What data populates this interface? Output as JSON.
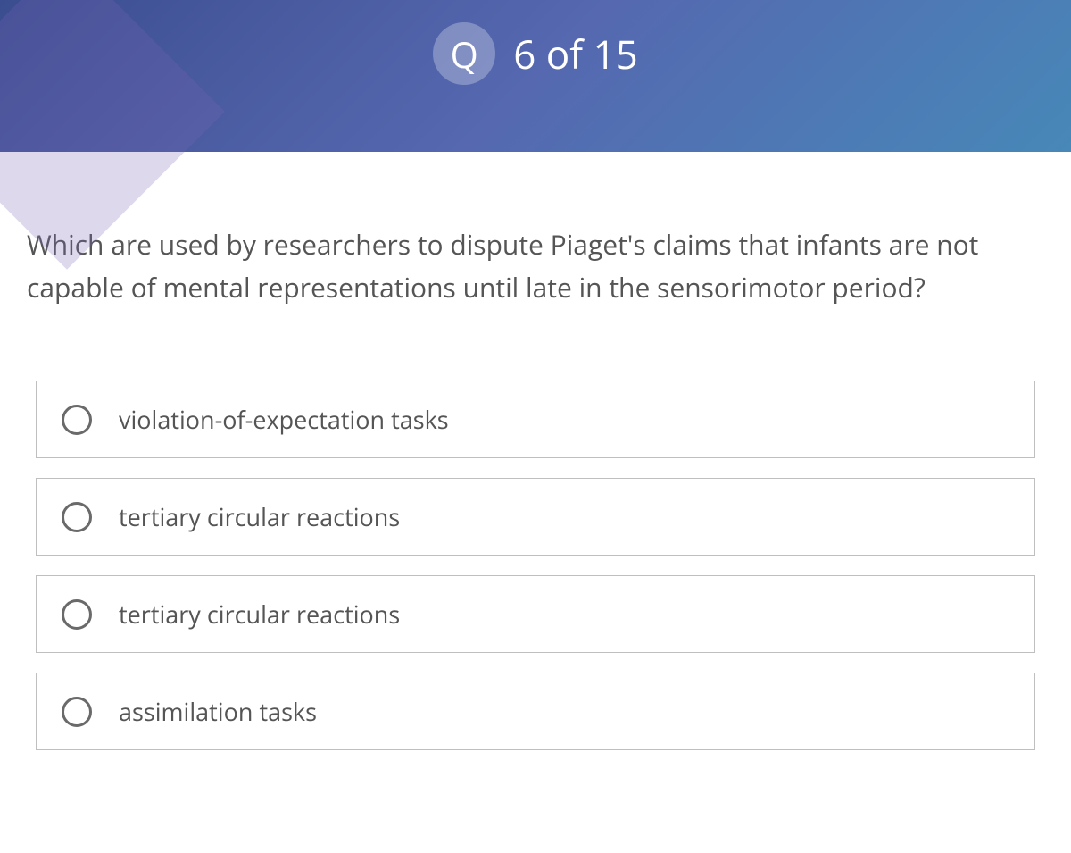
{
  "header": {
    "badge_letter": "Q",
    "progress_text": "6 of 15",
    "background_gradient_start": "#3a4d8f",
    "background_gradient_end": "#4788b8",
    "text_color": "#ffffff",
    "badge_bg": "rgba(255,255,255,0.28)"
  },
  "question": {
    "text": "Which are used by researchers to dispute Piaget's claims that infants are not capable of mental representations until late in the sensorimotor period?",
    "text_color": "#555555",
    "font_size": 30
  },
  "options": [
    {
      "label": "violation-of-expectation tasks",
      "selected": false
    },
    {
      "label": "tertiary circular reactions",
      "selected": false
    },
    {
      "label": "tertiary circular reactions",
      "selected": false
    },
    {
      "label": "assimilation tasks",
      "selected": false
    }
  ],
  "styles": {
    "option_border_color": "#bfbfbf",
    "option_text_color": "#555555",
    "radio_border_color": "#6a6a6a",
    "background_color": "#ffffff"
  }
}
